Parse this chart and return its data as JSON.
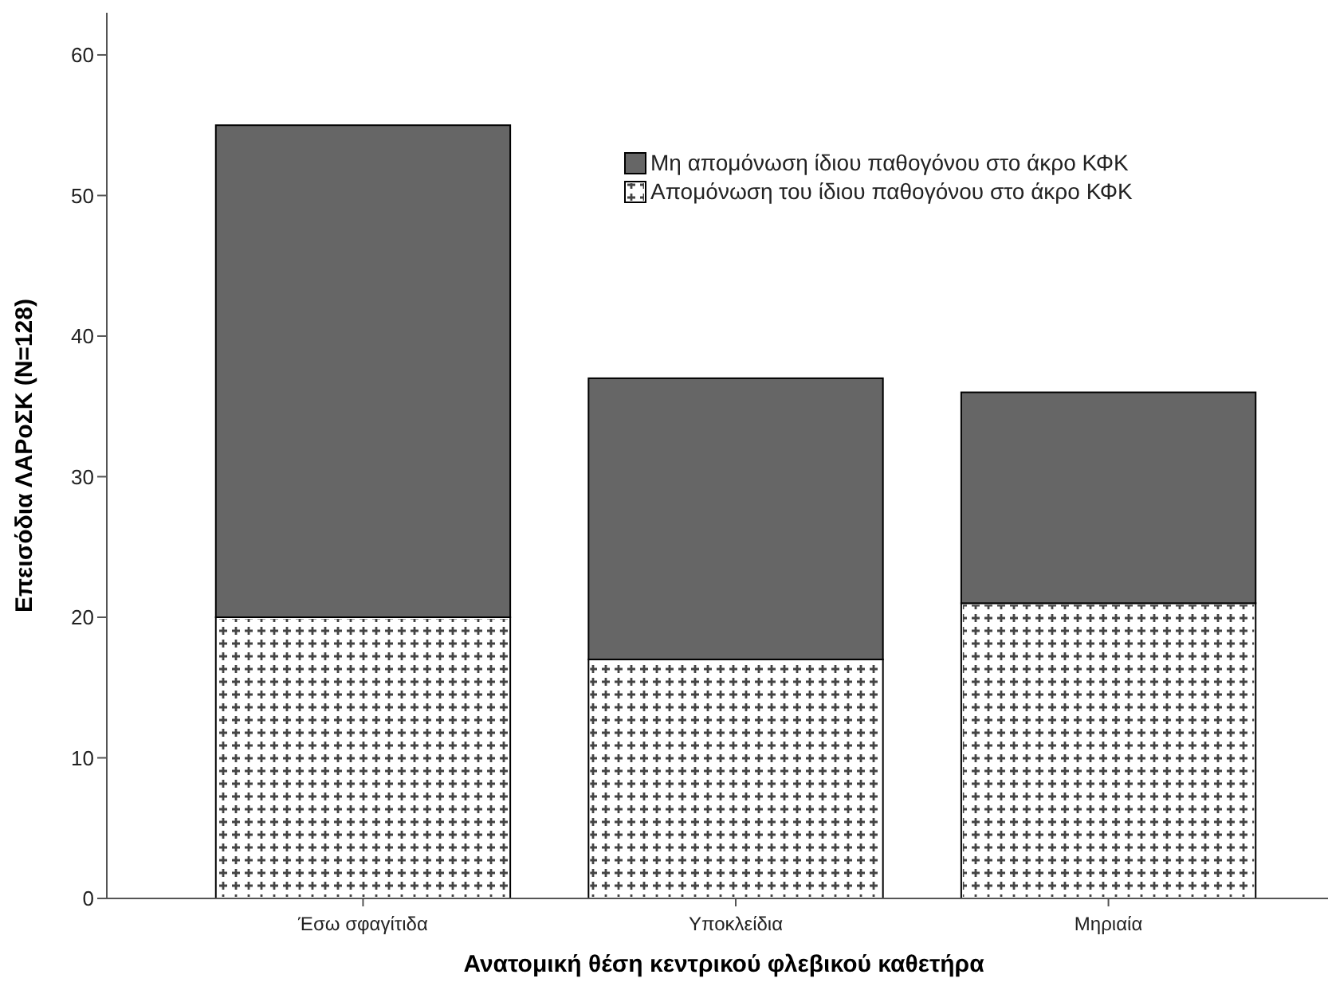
{
  "chart_data": {
    "type": "bar",
    "xlabel": "Ανατομική θέση κεντρικού φλεβικού καθετήρα",
    "ylabel": "Επεισόδια ΛΑΡοΣΚ (N=128)",
    "categories": [
      "Έσω σφαγίτιδα",
      "Υποκλείδια",
      "Μηριαία"
    ],
    "series": [
      {
        "name": "Απομόνωση του ίδιου παθογόνου στο άκρο ΚΦΚ",
        "color": "#ffffff",
        "values": [
          20,
          17,
          21
        ]
      },
      {
        "name": "Μη απομόνωση ίδιου παθογόνου στο άκρο ΚΦΚ",
        "color": "#666666",
        "values": [
          35,
          20,
          15
        ]
      }
    ],
    "stacked": true,
    "ylim": [
      0,
      63
    ],
    "yticks": [
      0,
      10,
      20,
      30,
      40,
      50,
      60
    ],
    "legend": "top right",
    "grid": false
  }
}
